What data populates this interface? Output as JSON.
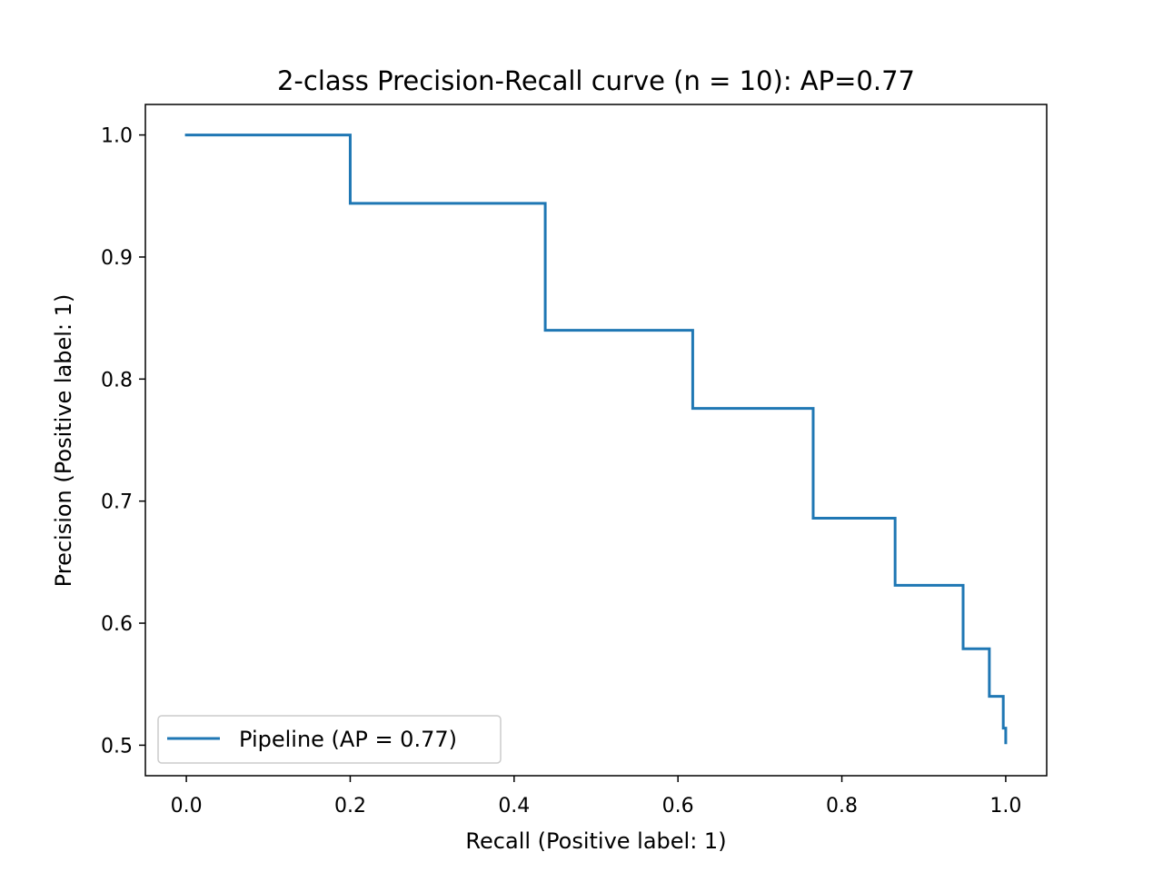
{
  "chart_data": {
    "type": "line",
    "title": "2-class Precision-Recall curve (n = 10): AP=0.77",
    "xlabel": "Recall (Positive label: 1)",
    "ylabel": "Precision (Positive label: 1)",
    "xlim": [
      -0.05,
      1.05
    ],
    "ylim": [
      0.475,
      1.025
    ],
    "xticks": [
      0.0,
      0.2,
      0.4,
      0.6,
      0.8,
      1.0
    ],
    "xtick_labels": [
      "0.0",
      "0.2",
      "0.4",
      "0.6",
      "0.8",
      "1.0"
    ],
    "yticks": [
      0.5,
      0.6,
      0.7,
      0.8,
      0.9,
      1.0
    ],
    "ytick_labels": [
      "0.5",
      "0.6",
      "0.7",
      "0.8",
      "0.9",
      "1.0"
    ],
    "grid": false,
    "legend_position": "lower-left",
    "drawstyle": "steps-post",
    "series": [
      {
        "name": "Pipeline (AP = 0.77)",
        "color": "#1f77b4",
        "recall": [
          1.0,
          0.997,
          0.98,
          0.948,
          0.865,
          0.765,
          0.618,
          0.438,
          0.2,
          0.056,
          0.0
        ],
        "precision": [
          0.502,
          0.514,
          0.54,
          0.579,
          0.631,
          0.686,
          0.776,
          0.84,
          0.944,
          1.0,
          1.0
        ]
      }
    ]
  }
}
